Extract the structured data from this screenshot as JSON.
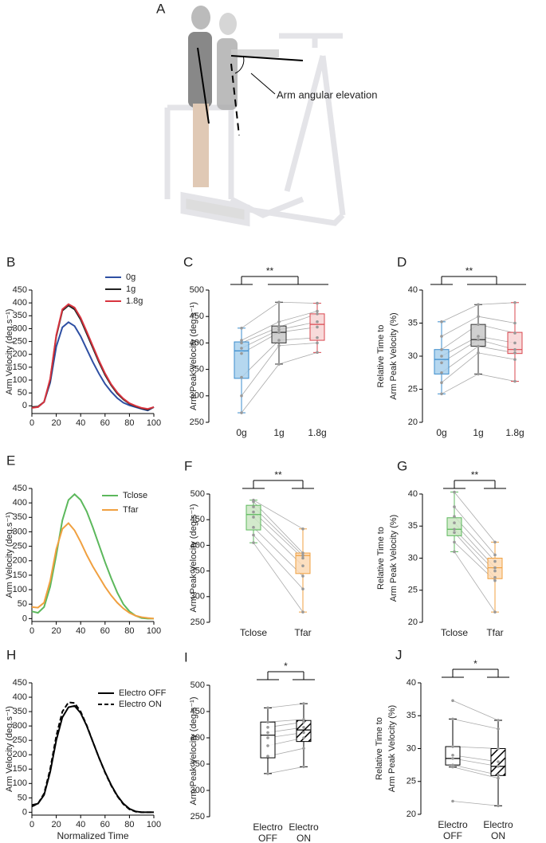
{
  "illustration": {
    "label": "A",
    "annotation": "Arm angular elevation"
  },
  "chart_data": [
    {
      "panel": "B",
      "type": "line",
      "ylabel": "Arm Velocity (deg.s⁻¹)",
      "x": [
        0,
        5,
        10,
        15,
        20,
        25,
        30,
        35,
        40,
        45,
        50,
        55,
        60,
        65,
        70,
        75,
        80,
        85,
        90,
        95,
        100
      ],
      "xlim": [
        0,
        100
      ],
      "xticks": [
        0,
        20,
        40,
        60,
        80,
        100
      ],
      "ylim": [
        -30,
        450
      ],
      "yticks": [
        0,
        50,
        100,
        150,
        200,
        250,
        300,
        350,
        400,
        450
      ],
      "series": [
        {
          "name": "0g",
          "color": "#2e4fa3",
          "values": [
            -5,
            -5,
            15,
            90,
            230,
            305,
            325,
            310,
            270,
            220,
            170,
            125,
            85,
            55,
            30,
            12,
            2,
            -5,
            -12,
            -18,
            -5
          ]
        },
        {
          "name": "1g",
          "color": "#222222",
          "values": [
            -5,
            -3,
            15,
            100,
            270,
            370,
            390,
            375,
            335,
            280,
            225,
            170,
            120,
            80,
            48,
            25,
            8,
            -2,
            -10,
            -15,
            -5
          ]
        },
        {
          "name": "1.8g",
          "color": "#d8343f",
          "values": [
            -8,
            -5,
            15,
            105,
            275,
            375,
            395,
            382,
            342,
            288,
            232,
            176,
            126,
            84,
            52,
            28,
            10,
            0,
            -8,
            -12,
            -5
          ]
        }
      ]
    },
    {
      "panel": "C",
      "type": "box",
      "ylabel": "Arm Peak Velocity (deg.s⁻¹)",
      "significance": "**",
      "categories": [
        "0g",
        "1g",
        "1.8g"
      ],
      "ylim": [
        250,
        500
      ],
      "yticks": [
        250,
        300,
        350,
        400,
        450,
        500
      ],
      "boxes": [
        {
          "min": 268,
          "q1": 333,
          "median": 385,
          "q3": 402,
          "max": 428,
          "fill": "#a8d0ec",
          "stroke": "#3b8ccc"
        },
        {
          "min": 360,
          "q1": 400,
          "median": 420,
          "q3": 432,
          "max": 477,
          "fill": "#c8c8c8",
          "stroke": "#333333"
        },
        {
          "min": 382,
          "q1": 405,
          "median": 435,
          "q3": 455,
          "max": 475,
          "fill": "#f7d4d4",
          "stroke": "#d9474f"
        }
      ],
      "subjects": [
        [
          268,
          360,
          382
        ],
        [
          300,
          395,
          400
        ],
        [
          335,
          405,
          410
        ],
        [
          380,
          420,
          430
        ],
        [
          390,
          425,
          440
        ],
        [
          400,
          430,
          455
        ],
        [
          405,
          440,
          460
        ],
        [
          428,
          477,
          475
        ]
      ]
    },
    {
      "panel": "D",
      "type": "box",
      "ylabel": [
        "Relative Time to",
        "Arm Peak Velocity (%)"
      ],
      "significance": "**",
      "categories": [
        "0g",
        "1g",
        "1.8g"
      ],
      "ylim": [
        20,
        40
      ],
      "yticks": [
        20,
        25,
        30,
        35,
        40
      ],
      "boxes": [
        {
          "min": 24.3,
          "q1": 27.3,
          "median": 29.5,
          "q3": 31,
          "max": 35.2,
          "fill": "#a8d0ec",
          "stroke": "#3b8ccc"
        },
        {
          "min": 27.3,
          "q1": 31.5,
          "median": 32.5,
          "q3": 34.8,
          "max": 37.8,
          "fill": "#c8c8c8",
          "stroke": "#333333"
        },
        {
          "min": 26.2,
          "q1": 30.4,
          "median": 31,
          "q3": 33.6,
          "max": 38.1,
          "fill": "#f7d4d4",
          "stroke": "#d9474f"
        }
      ],
      "subjects": [
        [
          24.3,
          27.3,
          26.2
        ],
        [
          26,
          30.5,
          29.5
        ],
        [
          27.5,
          31.5,
          30.5
        ],
        [
          29,
          32.5,
          31
        ],
        [
          30,
          33,
          32
        ],
        [
          31,
          34.8,
          33.5
        ],
        [
          33,
          36,
          35
        ],
        [
          35.2,
          37.8,
          38.1
        ]
      ]
    },
    {
      "panel": "E",
      "type": "line",
      "ylabel": "Arm Velocity (deg.s⁻¹)",
      "x": [
        0,
        5,
        10,
        15,
        20,
        25,
        30,
        35,
        40,
        45,
        50,
        55,
        60,
        65,
        70,
        75,
        80,
        85,
        90,
        95,
        100
      ],
      "xlim": [
        0,
        100
      ],
      "xticks": [
        0,
        20,
        40,
        60,
        80,
        100
      ],
      "ylim": [
        -10,
        450
      ],
      "yticks": [
        0,
        50,
        100,
        150,
        200,
        250,
        300,
        350,
        400,
        450
      ],
      "series": [
        {
          "name": "Tclose",
          "color": "#5cb85c",
          "values": [
            25,
            20,
            40,
            110,
            220,
            340,
            410,
            430,
            410,
            370,
            315,
            255,
            195,
            140,
            90,
            50,
            25,
            10,
            2,
            0,
            0
          ]
        },
        {
          "name": "Tfar",
          "color": "#f0a040",
          "values": [
            40,
            38,
            55,
            130,
            240,
            310,
            330,
            305,
            265,
            220,
            180,
            145,
            110,
            80,
            55,
            35,
            20,
            10,
            5,
            2,
            0
          ]
        }
      ]
    },
    {
      "panel": "F",
      "type": "box",
      "ylabel": "Arm Peak Velocity (deg.s⁻¹)",
      "significance": "**",
      "categories": [
        "Tclose",
        "Tfar"
      ],
      "ylim": [
        250,
        500
      ],
      "yticks": [
        250,
        300,
        350,
        400,
        450,
        500
      ],
      "boxes": [
        {
          "min": 405,
          "q1": 430,
          "median": 460,
          "q3": 478,
          "max": 488,
          "fill": "#cbe6c3",
          "stroke": "#5cb85c"
        },
        {
          "min": 270,
          "q1": 345,
          "median": 380,
          "q3": 385,
          "max": 432,
          "fill": "#fbd9b4",
          "stroke": "#f0a040"
        }
      ],
      "subjects": [
        [
          405,
          270
        ],
        [
          420,
          315
        ],
        [
          435,
          340
        ],
        [
          455,
          360
        ],
        [
          465,
          375
        ],
        [
          475,
          380
        ],
        [
          485,
          385
        ],
        [
          488,
          432
        ]
      ]
    },
    {
      "panel": "G",
      "type": "box",
      "ylabel": [
        "Relative Time to",
        "Arm Peak Velocity (%)"
      ],
      "significance": "**",
      "categories": [
        "Tclose",
        "Tfar"
      ],
      "ylim": [
        20,
        40
      ],
      "yticks": [
        20,
        25,
        30,
        35,
        40
      ],
      "boxes": [
        {
          "min": 31,
          "q1": 33.5,
          "median": 34.5,
          "q3": 36.3,
          "max": 40.3,
          "fill": "#cbe6c3",
          "stroke": "#5cb85c"
        },
        {
          "min": 21.6,
          "q1": 26.8,
          "median": 28.5,
          "q3": 30,
          "max": 32.5,
          "fill": "#fbd9b4",
          "stroke": "#f0a040"
        }
      ],
      "subjects": [
        [
          31,
          21.6
        ],
        [
          32.5,
          26.5
        ],
        [
          34,
          27
        ],
        [
          34.5,
          28
        ],
        [
          35.5,
          28.5
        ],
        [
          36.5,
          29.5
        ],
        [
          38,
          30.5
        ],
        [
          40.3,
          32.5
        ]
      ]
    },
    {
      "panel": "H",
      "type": "line",
      "ylabel": "Arm Velocity (deg.s⁻¹)",
      "xlabel": "Normalized Time",
      "x": [
        0,
        5,
        10,
        15,
        20,
        25,
        30,
        35,
        40,
        45,
        50,
        55,
        60,
        65,
        70,
        75,
        80,
        85,
        90,
        95,
        100
      ],
      "xlim": [
        0,
        100
      ],
      "xticks": [
        0,
        20,
        40,
        60,
        80,
        100
      ],
      "ylim": [
        -10,
        450
      ],
      "yticks": [
        0,
        50,
        100,
        150,
        200,
        250,
        300,
        350,
        400,
        450
      ],
      "series": [
        {
          "name": "Electro OFF",
          "color": "#000000",
          "dashed": false,
          "values": [
            25,
            30,
            60,
            140,
            250,
            330,
            365,
            370,
            345,
            300,
            245,
            190,
            140,
            95,
            58,
            30,
            12,
            3,
            0,
            0,
            0
          ]
        },
        {
          "name": "Electro ON",
          "color": "#000000",
          "dashed": true,
          "values": [
            20,
            30,
            65,
            150,
            265,
            350,
            382,
            380,
            350,
            302,
            245,
            190,
            138,
            93,
            56,
            28,
            10,
            2,
            0,
            0,
            0
          ]
        }
      ]
    },
    {
      "panel": "I",
      "type": "box",
      "ylabel": "Arm Peak Velocity (deg.s⁻¹)",
      "significance": "*",
      "categories": [
        [
          "Electro",
          "OFF"
        ],
        [
          "Electro",
          "ON"
        ]
      ],
      "ylim": [
        250,
        500
      ],
      "yticks": [
        250,
        300,
        350,
        400,
        450,
        500
      ],
      "boxes": [
        {
          "min": 332,
          "q1": 362,
          "median": 405,
          "q3": 430,
          "max": 457,
          "fill": "#ffffff",
          "stroke": "#000000",
          "hatch": false
        },
        {
          "min": 345,
          "q1": 393,
          "median": 415,
          "q3": 433,
          "max": 465,
          "fill": "#ffffff",
          "stroke": "#000000",
          "hatch": true
        }
      ],
      "subjects": [
        [
          332,
          345
        ],
        [
          365,
          380
        ],
        [
          385,
          400
        ],
        [
          400,
          410
        ],
        [
          410,
          420
        ],
        [
          420,
          430
        ],
        [
          430,
          435
        ],
        [
          457,
          465
        ]
      ]
    },
    {
      "panel": "J",
      "type": "box",
      "ylabel": [
        "Relative Time to",
        "Arm Peak Velocity (%)"
      ],
      "significance": "*",
      "categories": [
        [
          "Electro",
          "OFF"
        ],
        [
          "Electro",
          "ON"
        ]
      ],
      "ylim": [
        20,
        40
      ],
      "yticks": [
        20,
        25,
        30,
        35,
        40
      ],
      "boxes": [
        {
          "min": 27.2,
          "q1": 27.5,
          "median": 28.5,
          "q3": 30.3,
          "max": 34.5,
          "fill": "#ffffff",
          "stroke": "#000000",
          "hatch": false
        },
        {
          "min": 21.3,
          "q1": 25.9,
          "median": 27.3,
          "q3": 30,
          "max": 34.3,
          "fill": "#ffffff",
          "stroke": "#000000",
          "hatch": true
        }
      ],
      "subjects": [
        [
          22,
          21.3
        ],
        [
          27.2,
          25.5
        ],
        [
          27.5,
          26
        ],
        [
          28.5,
          27.3
        ],
        [
          29,
          28
        ],
        [
          30.3,
          30
        ],
        [
          34.5,
          33
        ],
        [
          37.3,
          34.3
        ]
      ]
    }
  ]
}
